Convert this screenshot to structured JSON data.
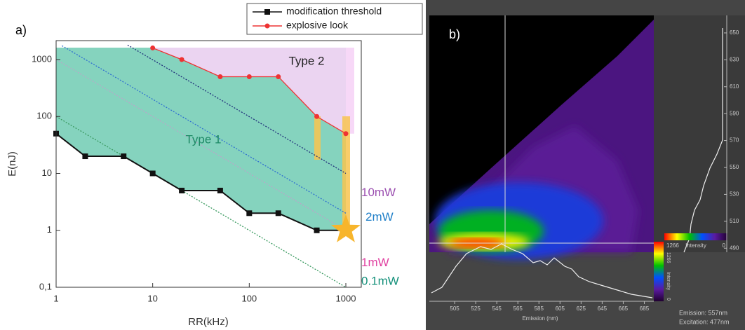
{
  "chart_data": [
    {
      "type": "line",
      "panel_label": "a)",
      "x_label": "RR(kHz)",
      "y_label": "E(nJ)",
      "x_log": true,
      "y_log": true,
      "xlim": [
        1,
        1445
      ],
      "ylim": [
        0.1,
        2150
      ],
      "xticks": [
        1,
        10,
        100,
        1000
      ],
      "yticks": [
        {
          "value": 0.1,
          "label": "0,1"
        },
        1,
        10,
        100,
        1000
      ],
      "legend": "upper right",
      "series": [
        {
          "name": "modification threshold",
          "color": "#111111",
          "marker": "square",
          "x": [
            1,
            2,
            5,
            10,
            20,
            50,
            100,
            200,
            500,
            1000
          ],
          "values": [
            50,
            20,
            20,
            10,
            5,
            5,
            2,
            2,
            1,
            1
          ]
        },
        {
          "name": "explosive look",
          "color": "#ee3333",
          "marker": "circle",
          "x": [
            10,
            20,
            50,
            100,
            200,
            500,
            1000
          ],
          "values": [
            1600,
            1000,
            500,
            500,
            500,
            100,
            50
          ]
        }
      ],
      "power_lines": [
        {
          "name": "10mW",
          "color": "#1f2f7a",
          "label_color": "#9b4fb0",
          "x": [
            5.5,
            1000
          ],
          "values": [
            1800,
            10
          ]
        },
        {
          "name": "2mW",
          "color": "#2f6fd0",
          "label_color": "#1f7fc8",
          "x": [
            1.15,
            1000
          ],
          "values": [
            1750,
            2
          ]
        },
        {
          "name": "1mW",
          "color": "#b8a8c8",
          "label_color": "#e040a0",
          "x": [
            1,
            1000
          ],
          "values": [
            1000,
            1
          ]
        },
        {
          "name": "0.1mW",
          "color": "#3a9a60",
          "label_color": "#14907a",
          "x": [
            1,
            1000
          ],
          "values": [
            100,
            0.1
          ]
        }
      ],
      "annotations": [
        "Type 1",
        "Type 2"
      ]
    },
    {
      "type": "heatmap",
      "panel_label": "b)",
      "x_label": "Emission (nm)",
      "xlim": [
        481,
        694
      ],
      "xticks": [
        505,
        525,
        545,
        565,
        585,
        605,
        625,
        645,
        665,
        685
      ],
      "ylim": [
        487,
        663
      ],
      "yticks": [
        490,
        510,
        530,
        550,
        570,
        590,
        610,
        630,
        650
      ],
      "colorbar": {
        "max": 1266,
        "min": 0,
        "label": "Intensity"
      },
      "readout": [
        "Emission: 557nm",
        "Excitation: 477nm"
      ]
    }
  ]
}
